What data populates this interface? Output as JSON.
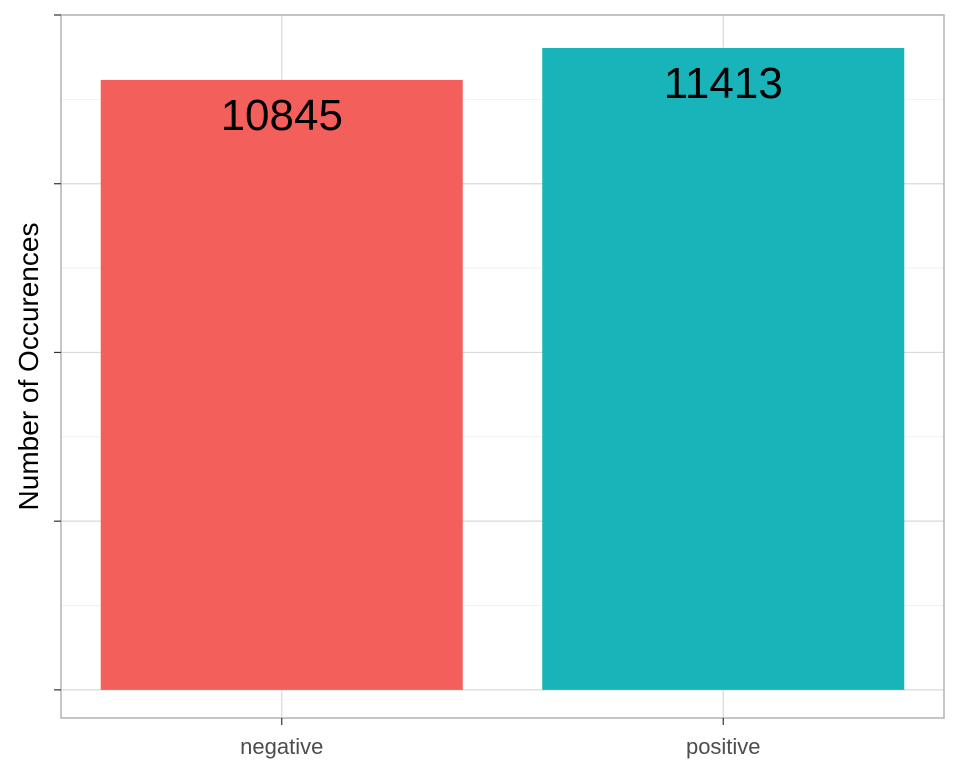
{
  "chart_data": {
    "type": "bar",
    "title": "",
    "xlabel": "",
    "ylabel": "Number of Occurences",
    "categories": [
      "negative",
      "positive"
    ],
    "values": [
      10845,
      11413
    ],
    "data_labels": [
      "10845",
      "11413"
    ],
    "ylim": [
      -500,
      12000
    ],
    "y_tick_labels_shown": false,
    "grid": true,
    "legend": "none",
    "colors": {
      "negative": "#F35F5B",
      "positive": "#19B4B9",
      "panel_border": "#b3b3b3",
      "grid_major": "#d9d9d9",
      "grid_minor": "#ededed"
    }
  }
}
